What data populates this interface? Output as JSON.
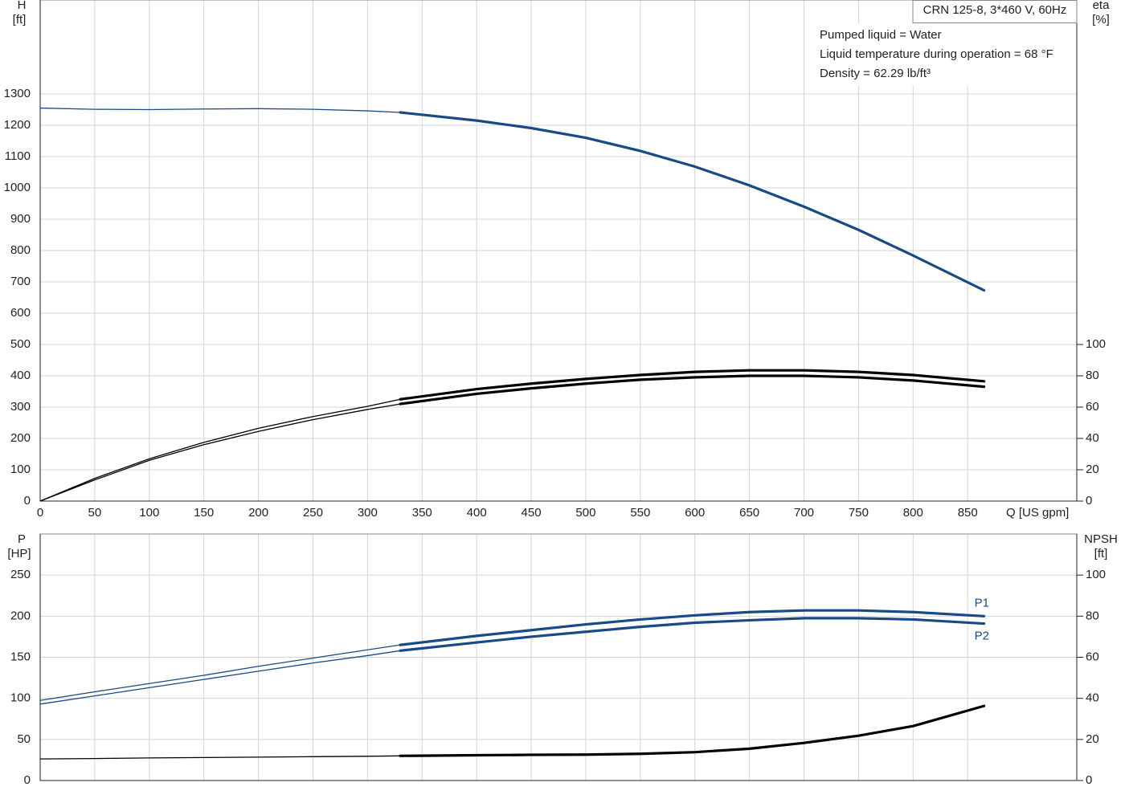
{
  "chart_data": [
    {
      "type": "line",
      "title": "CRN 125-8, 3*460 V, 60Hz",
      "annotations": [
        "Pumped liquid = Water",
        "Liquid temperature during operation = 68 °F",
        "Density = 62.29 lb/ft³"
      ],
      "x_label": "Q [US gpm]",
      "y_label": "H",
      "y_unit": "[ft]",
      "y2_label": "eta",
      "y2_unit": "[%]",
      "x": [
        0,
        50,
        100,
        150,
        200,
        250,
        300,
        330,
        400,
        450,
        500,
        550,
        600,
        650,
        700,
        750,
        800,
        865
      ],
      "xlim": [
        0,
        950
      ],
      "xticks": [
        0,
        50,
        100,
        150,
        200,
        250,
        300,
        350,
        400,
        450,
        500,
        550,
        600,
        650,
        700,
        750,
        800,
        850
      ],
      "ylim": [
        0,
        1600
      ],
      "yticks": [
        0,
        100,
        200,
        300,
        400,
        500,
        600,
        700,
        800,
        900,
        1000,
        1100,
        1200,
        1300
      ],
      "y2lim": [
        0,
        320
      ],
      "y2ticks": [
        0,
        20,
        40,
        60,
        80,
        100
      ],
      "grid": true,
      "highlight_from": 330,
      "series": [
        {
          "color": "#174a87",
          "values": [
            1255,
            1251,
            1250,
            1252,
            1253,
            1251,
            1246,
            1241,
            1215,
            1191,
            1160,
            1118,
            1068,
            1008,
            940,
            866,
            784,
            673
          ]
        },
        {
          "color": "#000000",
          "axis": "y2",
          "values": [
            0,
            14.5,
            27,
            37.5,
            46.5,
            54,
            60.5,
            65,
            71.5,
            75,
            78,
            80.5,
            82.5,
            83.5,
            83.5,
            82.5,
            80.5,
            76.5
          ]
        },
        {
          "color": "#000000",
          "axis": "y2",
          "values": [
            0,
            13.5,
            26,
            36,
            44.5,
            52,
            58.5,
            62,
            68.5,
            72,
            75,
            77.5,
            79,
            80,
            80,
            79,
            77,
            73
          ]
        }
      ]
    },
    {
      "type": "line",
      "y_label": "P",
      "y_unit": "[HP]",
      "y2_label": "NPSH",
      "y2_unit": "[ft]",
      "x": [
        0,
        50,
        100,
        150,
        200,
        250,
        300,
        330,
        400,
        450,
        500,
        550,
        600,
        650,
        700,
        750,
        800,
        865
      ],
      "xlim": [
        0,
        950
      ],
      "xticks": [
        0,
        50,
        100,
        150,
        200,
        250,
        300,
        350,
        400,
        450,
        500,
        550,
        600,
        650,
        700,
        750,
        800,
        850
      ],
      "ylim": [
        0,
        300
      ],
      "yticks": [
        0,
        50,
        100,
        150,
        200,
        250
      ],
      "y2lim": [
        0,
        120
      ],
      "y2ticks": [
        0,
        20,
        40,
        60,
        80,
        100
      ],
      "grid": true,
      "highlight_from": 330,
      "series": [
        {
          "name": "P1",
          "color": "#174a87",
          "values": [
            97.5,
            108,
            118,
            128,
            139,
            149,
            159,
            165,
            176,
            183,
            190,
            196,
            201,
            205,
            207,
            207,
            205,
            200
          ]
        },
        {
          "name": "P2",
          "color": "#174a87",
          "values": [
            93,
            103,
            113,
            123,
            133,
            143,
            152,
            158,
            168,
            175,
            181,
            187,
            192,
            195,
            197.5,
            197.5,
            196,
            191
          ]
        },
        {
          "color": "#000000",
          "axis": "y2",
          "values": [
            10.5,
            10.7,
            11,
            11.2,
            11.4,
            11.6,
            11.8,
            12,
            12.3,
            12.5,
            12.6,
            13,
            13.8,
            15.5,
            18.3,
            21.8,
            26.5,
            36.3
          ]
        }
      ]
    }
  ]
}
